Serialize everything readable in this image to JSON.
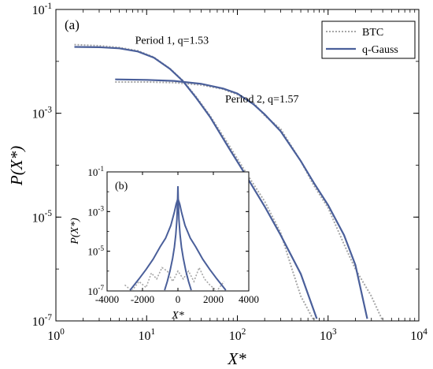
{
  "chart_data": [
    {
      "panel": "(a)",
      "type": "line",
      "xscale": "log",
      "yscale": "log",
      "xlim": [
        1,
        10000
      ],
      "ylim": [
        1e-07,
        0.1
      ],
      "xlabel": "X*",
      "ylabel": "P(X*)",
      "x_ticks": [
        {
          "value": 1,
          "mant": "10",
          "exp": "0"
        },
        {
          "value": 10,
          "mant": "10",
          "exp": "1"
        },
        {
          "value": 100,
          "mant": "10",
          "exp": "2"
        },
        {
          "value": 1000,
          "mant": "10",
          "exp": "3"
        },
        {
          "value": 10000,
          "mant": "10",
          "exp": "4"
        }
      ],
      "y_ticks": [
        {
          "value": 1e-07,
          "mant": "10",
          "exp": "-7"
        },
        {
          "value": 1e-05,
          "mant": "10",
          "exp": "-5"
        },
        {
          "value": 0.001,
          "mant": "10",
          "exp": "-3"
        },
        {
          "value": 0.1,
          "mant": "10",
          "exp": "-1"
        }
      ],
      "legend": {
        "placement": "top-right",
        "entries": [
          {
            "label": "BTC",
            "style": "dotted",
            "color": "#a6a6a6"
          },
          {
            "label": "q-Gauss",
            "style": "solid",
            "color": "#4a5f9a"
          }
        ]
      },
      "annotations": [
        {
          "text": "Period 1, q=1.53",
          "x": 40,
          "y": 0.022
        },
        {
          "text": "Period 2, q=1.57",
          "x": 480,
          "y": 0.0016
        }
      ],
      "series": [
        {
          "name": "q-Gauss",
          "curves": [
            {
              "x": [
                1.6,
                3,
                5,
                8,
                12,
                18,
                25,
                35,
                50,
                80,
                120,
                200,
                300,
                500,
                750
              ],
              "y": [
                0.019,
                0.0187,
                0.0178,
                0.0155,
                0.0118,
                0.0072,
                0.0042,
                0.002,
                0.00085,
                0.00022,
                7e-05,
                1.6e-05,
                4.5e-06,
                8e-07,
                1.1e-07
              ]
            },
            {
              "x": [
                4.5,
                10,
                20,
                40,
                70,
                100,
                150,
                200,
                300,
                500,
                700,
                1000,
                1500,
                2000,
                2700
              ],
              "y": [
                0.0045,
                0.0044,
                0.0042,
                0.0037,
                0.003,
                0.0024,
                0.0015,
                0.00095,
                0.00045,
                0.00012,
                4.5e-05,
                1.7e-05,
                4.5e-06,
                1.2e-06,
                1.1e-07
              ]
            }
          ]
        },
        {
          "name": "BTC",
          "curves": [
            {
              "x": [
                1.6,
                3,
                5,
                8,
                12,
                18,
                25,
                35,
                50,
                80,
                120,
                200,
                300,
                400,
                500,
                700
              ],
              "y": [
                0.021,
                0.02,
                0.0185,
                0.016,
                0.012,
                0.0073,
                0.0043,
                0.0021,
                0.0009,
                0.00025,
                8e-05,
                2e-05,
                5e-06,
                1e-06,
                3e-07,
                1e-07
              ]
            },
            {
              "x": [
                4.5,
                10,
                20,
                40,
                70,
                100,
                150,
                200,
                300,
                500,
                700,
                1000,
                1500,
                2000,
                3000,
                4000
              ],
              "y": [
                0.004,
                0.004,
                0.0039,
                0.0035,
                0.0029,
                0.0023,
                0.0016,
                0.0009,
                0.0005,
                0.00012,
                4e-05,
                1.5e-05,
                3e-06,
                1e-06,
                3e-07,
                1e-07
              ]
            }
          ]
        }
      ]
    },
    {
      "panel": "(b)",
      "type": "line",
      "xscale": "linear",
      "yscale": "log",
      "xlim": [
        -4000,
        4000
      ],
      "ylim": [
        1e-07,
        0.1
      ],
      "xlabel": "X*",
      "ylabel": "P(X*)",
      "x_ticks": [
        {
          "value": -4000,
          "label": "-4000"
        },
        {
          "value": -2000,
          "label": "-2000"
        },
        {
          "value": 0,
          "label": "0"
        },
        {
          "value": 2000,
          "label": "2000"
        },
        {
          "value": 4000,
          "label": "4000"
        }
      ],
      "y_ticks": [
        {
          "value": 1e-07,
          "mant": "10",
          "exp": "-7"
        },
        {
          "value": 1e-05,
          "mant": "10",
          "exp": "-5"
        },
        {
          "value": 0.001,
          "mant": "10",
          "exp": "-3"
        },
        {
          "value": 0.1,
          "mant": "10",
          "exp": "-1"
        }
      ],
      "series": [
        {
          "name": "q-Gauss",
          "curves": [
            {
              "x": [
                -750,
                -600,
                -450,
                -300,
                -200,
                -120,
                -60,
                -20,
                0,
                20,
                60,
                120,
                200,
                300,
                450,
                600,
                750
              ],
              "y": [
                1.1e-07,
                3e-07,
                1e-06,
                4.5e-06,
                1.6e-05,
                7e-05,
                0.0004,
                0.004,
                0.019,
                0.004,
                0.0004,
                7e-05,
                1.6e-05,
                4.5e-06,
                1e-06,
                3e-07,
                1.1e-07
              ]
            },
            {
              "x": [
                -2700,
                -2200,
                -1800,
                -1400,
                -1000,
                -700,
                -400,
                -200,
                -100,
                0,
                100,
                200,
                400,
                700,
                1000,
                1400,
                1800,
                2200,
                2700
              ],
              "y": [
                1.1e-07,
                4e-07,
                1.2e-06,
                4e-06,
                1.7e-05,
                4.5e-05,
                0.0002,
                0.00095,
                0.0024,
                0.0045,
                0.0024,
                0.00095,
                0.0002,
                4.5e-05,
                1.7e-05,
                4e-06,
                1.2e-06,
                4e-07,
                1.1e-07
              ]
            }
          ]
        },
        {
          "name": "BTC",
          "curves": [
            {
              "x": [
                -3000,
                -2600,
                -2200,
                -1800,
                -1500,
                -1200,
                -900,
                -600,
                -300,
                0,
                300,
                600,
                900,
                1200,
                1500,
                1800,
                2200,
                2600
              ],
              "y": [
                2e-07,
                1e-07,
                3e-07,
                1.5e-07,
                8e-07,
                4e-07,
                1.5e-06,
                1e-06,
                3e-07,
                1e-06,
                4e-07,
                1e-06,
                3e-07,
                1.5e-06,
                4e-07,
                2e-07,
                1e-07,
                3e-07
              ]
            }
          ]
        }
      ]
    }
  ]
}
